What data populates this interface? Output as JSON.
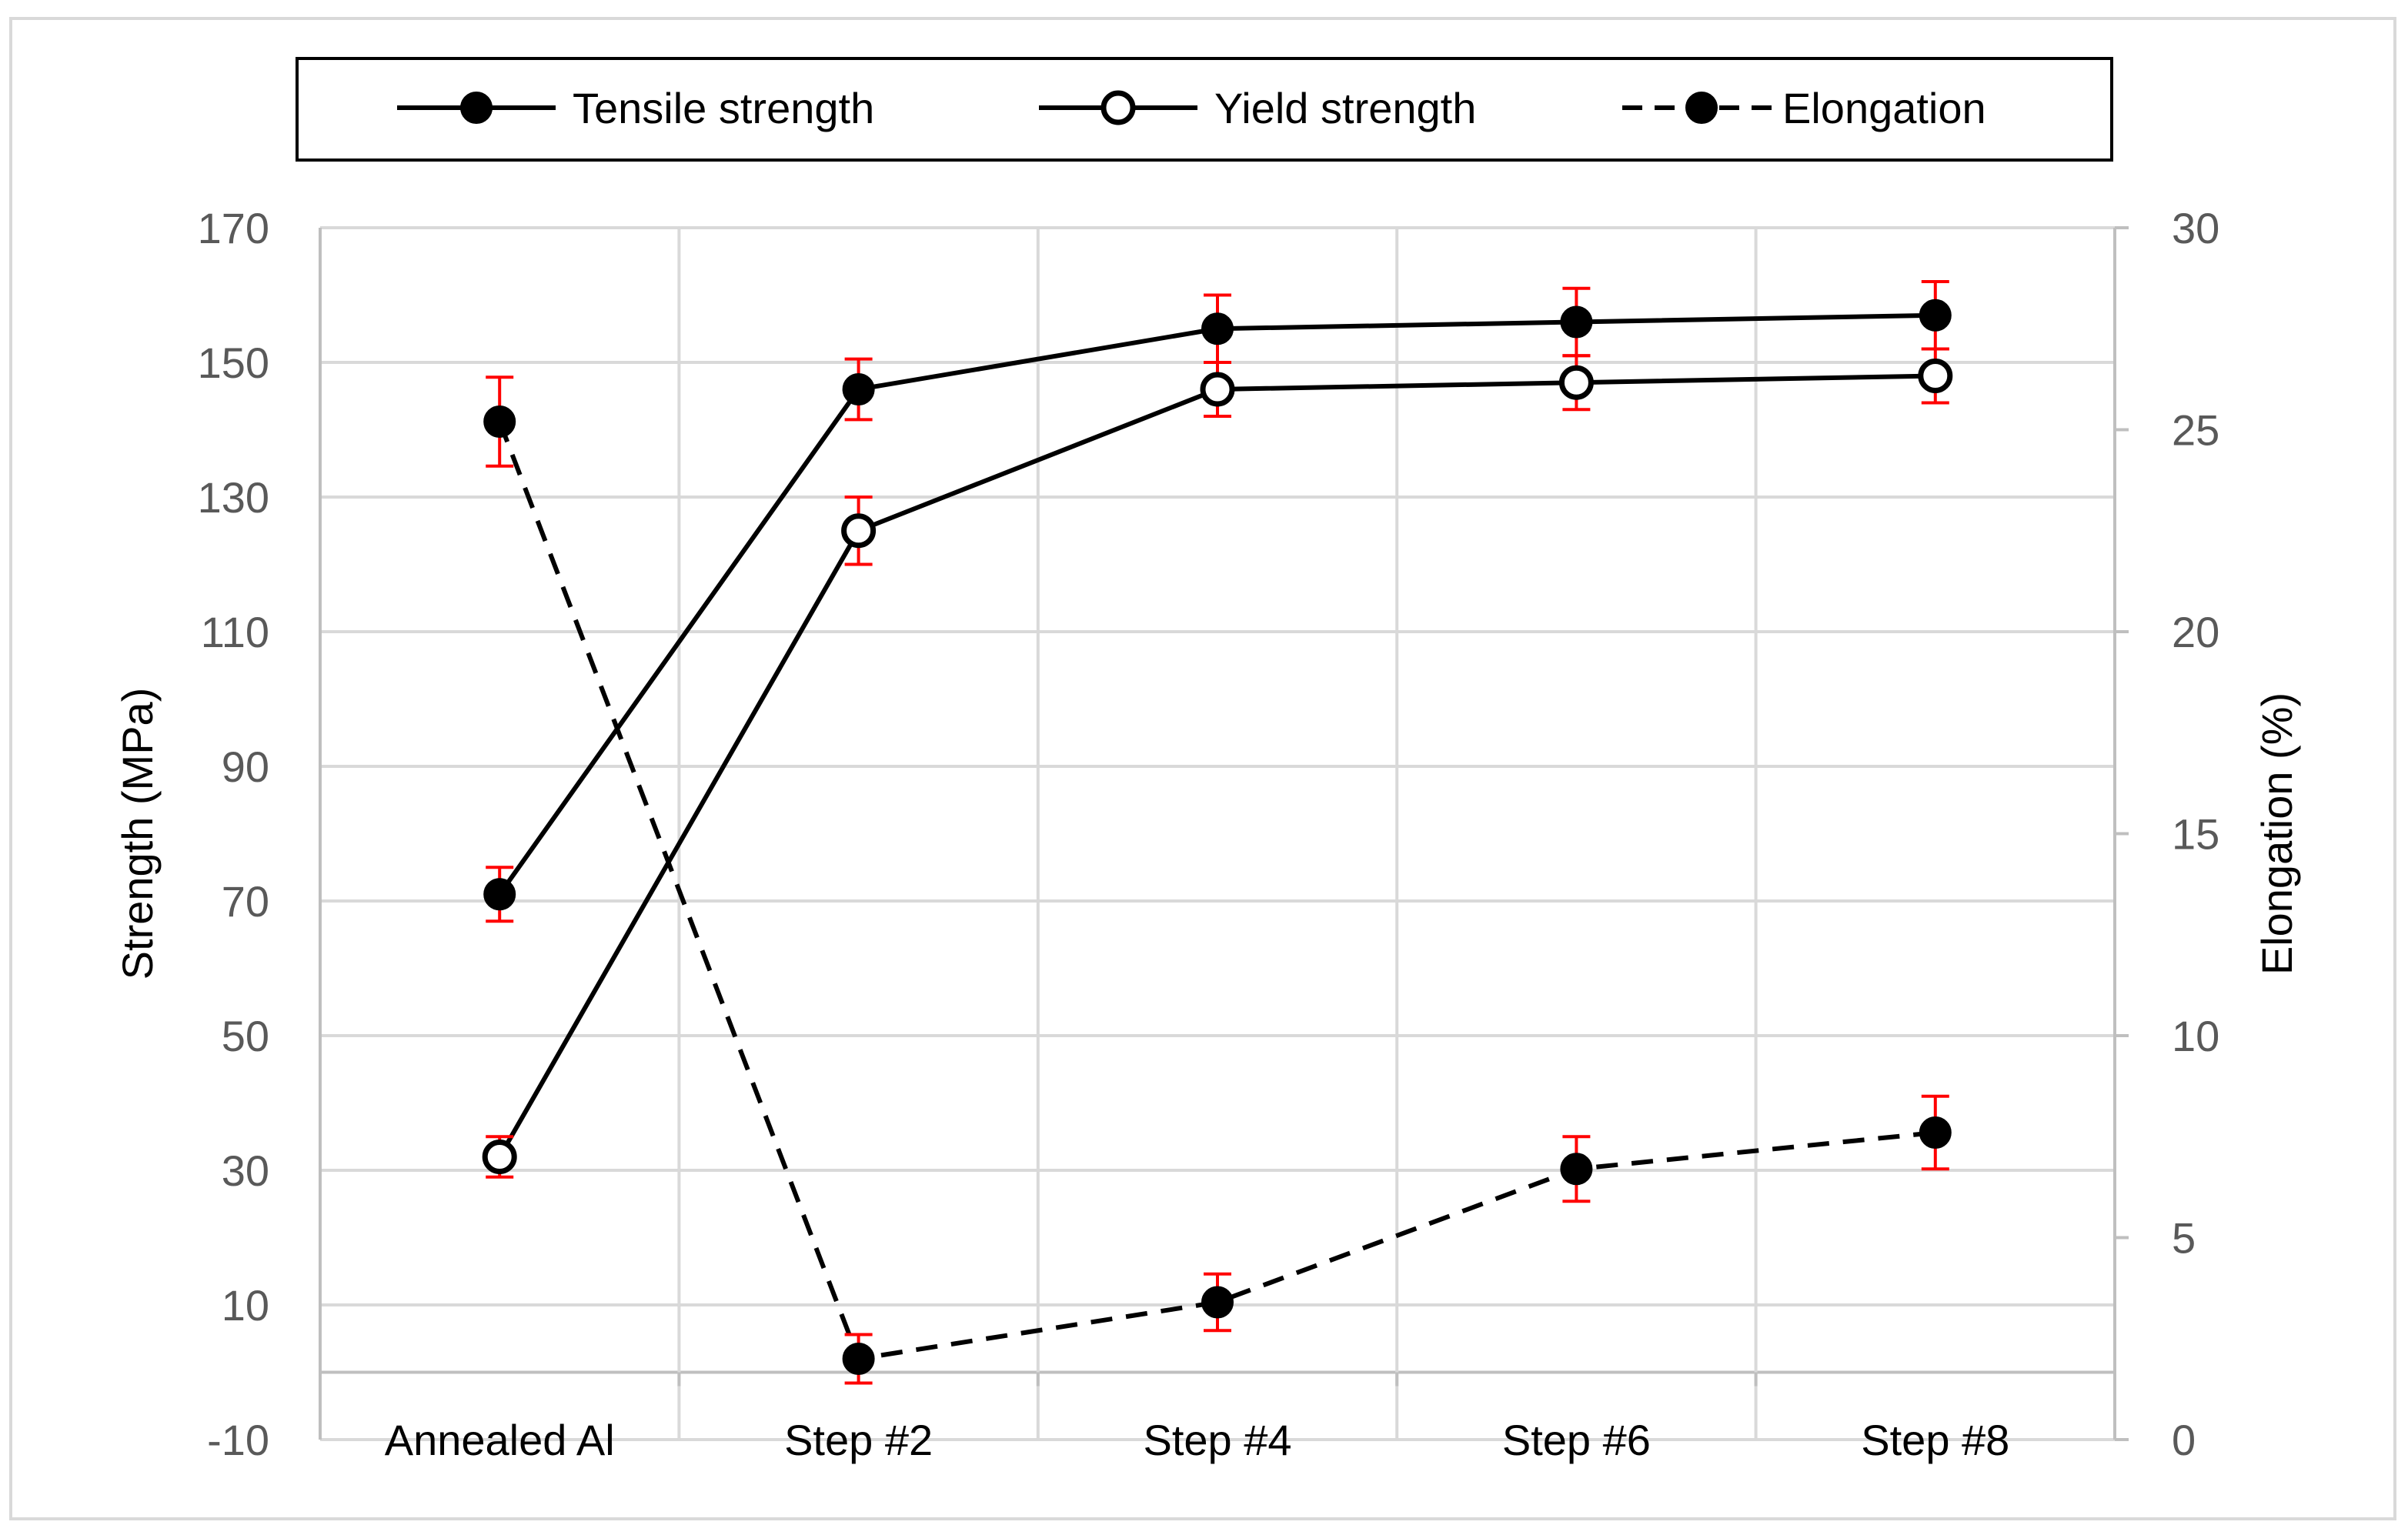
{
  "colors": {
    "series": "#000000",
    "error_bar": "#ff0000",
    "grid": "#d9d9d9",
    "axis_text": "#595959",
    "label_text": "#000000",
    "frame": "#d9d9d9"
  },
  "chart_data": {
    "type": "line",
    "title": "",
    "categories": [
      "Annealed Al",
      "Step #2",
      "Step #4",
      "Step #6",
      "Step #8"
    ],
    "ylabel": "Strength (MPa)",
    "y2label": "Elongation (%)",
    "ylim": [
      -10,
      170
    ],
    "yticks": [
      -10,
      10,
      30,
      50,
      70,
      90,
      110,
      130,
      150,
      170
    ],
    "y2lim": [
      0,
      30
    ],
    "y2ticks": [
      0,
      5,
      10,
      15,
      20,
      25,
      30
    ],
    "legend_position": "top",
    "grid": true,
    "series": [
      {
        "name": "Tensile strength",
        "axis": "left",
        "line": "solid",
        "marker": "filled-circle",
        "values": [
          71,
          146,
          155,
          156,
          157
        ],
        "errors": [
          4,
          4.5,
          5,
          5,
          5
        ]
      },
      {
        "name": "Yield strength",
        "axis": "left",
        "line": "solid",
        "marker": "open-circle",
        "values": [
          32,
          125,
          146,
          147,
          148
        ],
        "errors": [
          3,
          5,
          4,
          4,
          4
        ]
      },
      {
        "name": "Elongation",
        "axis": "right",
        "line": "dashed",
        "marker": "filled-circle",
        "values": [
          25.2,
          2.0,
          3.4,
          6.7,
          7.6
        ],
        "errors": [
          1.1,
          0.6,
          0.7,
          0.8,
          0.9
        ]
      }
    ]
  }
}
